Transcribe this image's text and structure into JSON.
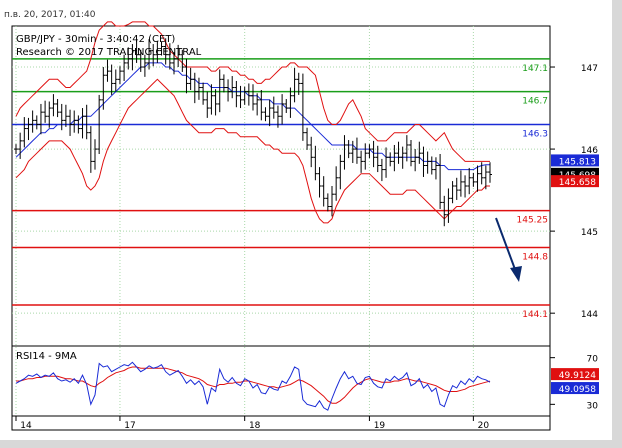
{
  "header": {
    "date_text": "п.в. 20, 2017, 01:40"
  },
  "chart_data": {
    "type": "candlestick",
    "title": "GBP/JPY - 30min - 3:40:42 (CET)",
    "subtitle": "Research © 2017 TRADING CENTRAL",
    "ylim": [
      143.6,
      147.5
    ],
    "y_ticks": [
      "147",
      "146",
      "145",
      "144"
    ],
    "x_ticks": [
      "14",
      "17",
      "18",
      "19",
      "20"
    ],
    "horizontal_levels": [
      {
        "value": 147.1,
        "label": "147.1",
        "color": "#1a9e1a",
        "kind": "resistance"
      },
      {
        "value": 146.7,
        "label": "146.7",
        "color": "#1a9e1a",
        "kind": "resistance"
      },
      {
        "value": 146.3,
        "label": "146.3",
        "color": "#1a2bd6",
        "kind": "pivot"
      },
      {
        "value": 145.25,
        "label": "145.25",
        "color": "#e01010",
        "kind": "support"
      },
      {
        "value": 144.8,
        "label": "144.8",
        "color": "#e01010",
        "kind": "support"
      },
      {
        "value": 144.1,
        "label": "144.1",
        "color": "#e01010",
        "kind": "support"
      }
    ],
    "price_badges": [
      {
        "label": "145.813",
        "bg": "#1a2bd6",
        "fg": "#ffffff"
      },
      {
        "label": "145.698",
        "bg": "#000000",
        "fg": "#ffffff"
      },
      {
        "label": "145.658",
        "bg": "#e01010",
        "fg": "#ffffff"
      }
    ],
    "price_series": [
      146.0,
      146.1,
      146.25,
      146.3,
      146.35,
      146.3,
      146.45,
      146.4,
      146.5,
      146.55,
      146.45,
      146.35,
      146.4,
      146.3,
      146.35,
      146.25,
      146.4,
      146.2,
      145.85,
      146.0,
      146.6,
      146.9,
      146.95,
      146.8,
      146.85,
      146.95,
      147.05,
      147.1,
      147.2,
      147.15,
      147.0,
      147.05,
      147.2,
      147.15,
      147.2,
      147.25,
      147.15,
      147.05,
      147.1,
      147.15,
      147.0,
      146.8,
      146.85,
      146.7,
      146.75,
      146.6,
      146.5,
      146.65,
      146.55,
      146.85,
      146.75,
      146.7,
      146.75,
      146.65,
      146.6,
      146.7,
      146.65,
      146.55,
      146.6,
      146.45,
      146.4,
      146.5,
      146.45,
      146.4,
      146.55,
      146.5,
      146.65,
      146.85,
      146.8,
      146.2,
      146.05,
      145.9,
      145.7,
      145.55,
      145.4,
      145.3,
      145.45,
      145.65,
      145.85,
      146.05,
      145.95,
      146.0,
      145.9,
      145.85,
      145.95,
      146.0,
      145.9,
      145.8,
      145.75,
      145.9,
      145.85,
      145.95,
      145.9,
      145.95,
      146.05,
      145.85,
      145.9,
      145.95,
      145.8,
      145.85,
      145.75,
      145.8,
      145.35,
      145.2,
      145.4,
      145.55,
      145.5,
      145.6,
      145.55,
      145.65,
      145.6,
      145.7,
      145.65,
      145.72,
      145.69
    ],
    "upper_band": [
      146.4,
      146.5,
      146.55,
      146.6,
      146.65,
      146.7,
      146.75,
      146.8,
      146.85,
      146.85,
      146.85,
      146.8,
      146.75,
      146.75,
      146.8,
      146.85,
      146.9,
      146.95,
      147.1,
      147.3,
      147.45,
      147.5,
      147.55,
      147.55,
      147.5,
      147.5,
      147.5,
      147.52,
      147.55,
      147.55,
      147.55,
      147.55,
      147.5,
      147.5,
      147.45,
      147.4,
      147.3,
      147.2,
      147.15,
      147.1,
      147.05,
      147.0,
      147.0,
      147.0,
      147.0,
      147.0,
      147.0,
      146.95,
      146.95,
      147.0,
      147.0,
      147.0,
      146.95,
      146.95,
      146.9,
      146.9,
      146.85,
      146.85,
      146.8,
      146.8,
      146.85,
      146.85,
      146.9,
      146.95,
      147.0,
      147.0,
      147.05,
      147.05,
      147.0,
      147.0,
      147.0,
      146.95,
      146.9,
      146.7,
      146.5,
      146.35,
      146.3,
      146.3,
      146.35,
      146.45,
      146.55,
      146.6,
      146.5,
      146.4,
      146.25,
      146.2,
      146.15,
      146.1,
      146.1,
      146.1,
      146.15,
      146.2,
      146.2,
      146.2,
      146.2,
      146.25,
      146.3,
      146.3,
      146.25,
      146.2,
      146.15,
      146.1,
      146.15,
      146.2,
      146.1,
      146.0,
      145.95,
      145.9,
      145.85,
      145.85,
      145.85,
      145.85,
      145.85,
      145.85,
      145.85
    ],
    "lower_band": [
      145.65,
      145.7,
      145.75,
      145.85,
      145.9,
      145.95,
      146.0,
      146.05,
      146.1,
      146.1,
      146.1,
      146.1,
      146.05,
      146.0,
      145.9,
      145.8,
      145.7,
      145.55,
      145.5,
      145.55,
      145.65,
      145.85,
      146.0,
      146.1,
      146.2,
      146.3,
      146.4,
      146.5,
      146.55,
      146.6,
      146.65,
      146.7,
      146.75,
      146.8,
      146.85,
      146.8,
      146.75,
      146.7,
      146.65,
      146.55,
      146.45,
      146.35,
      146.3,
      146.25,
      146.2,
      146.2,
      146.2,
      146.2,
      146.25,
      146.25,
      146.25,
      146.2,
      146.2,
      146.2,
      146.15,
      146.15,
      146.15,
      146.15,
      146.15,
      146.1,
      146.05,
      146.05,
      146.0,
      146.0,
      145.95,
      145.95,
      145.95,
      145.95,
      145.9,
      145.8,
      145.6,
      145.4,
      145.25,
      145.15,
      145.1,
      145.1,
      145.15,
      145.3,
      145.4,
      145.5,
      145.55,
      145.6,
      145.65,
      145.7,
      145.7,
      145.7,
      145.65,
      145.6,
      145.55,
      145.5,
      145.45,
      145.45,
      145.45,
      145.45,
      145.5,
      145.5,
      145.5,
      145.45,
      145.4,
      145.35,
      145.3,
      145.25,
      145.2,
      145.15,
      145.2,
      145.25,
      145.3,
      145.3,
      145.35,
      145.4,
      145.45,
      145.5,
      145.5,
      145.55,
      145.55
    ],
    "ma_series": [
      145.9,
      145.95,
      146.0,
      146.05,
      146.1,
      146.15,
      146.2,
      146.2,
      146.25,
      146.25,
      146.3,
      146.3,
      146.3,
      146.3,
      146.35,
      146.35,
      146.4,
      146.4,
      146.4,
      146.45,
      146.5,
      146.55,
      146.6,
      146.65,
      146.7,
      146.75,
      146.8,
      146.85,
      146.9,
      146.95,
      147.0,
      147.0,
      147.05,
      147.05,
      147.05,
      147.05,
      147.0,
      147.0,
      146.95,
      146.95,
      146.9,
      146.9,
      146.85,
      146.85,
      146.8,
      146.8,
      146.8,
      146.75,
      146.75,
      146.75,
      146.75,
      146.75,
      146.7,
      146.7,
      146.7,
      146.7,
      146.65,
      146.65,
      146.65,
      146.6,
      146.6,
      146.6,
      146.55,
      146.55,
      146.55,
      146.5,
      146.5,
      146.5,
      146.45,
      146.4,
      146.35,
      146.3,
      146.25,
      146.2,
      146.15,
      146.1,
      146.05,
      146.05,
      146.05,
      146.05,
      146.05,
      146.05,
      146.0,
      146.0,
      146.0,
      146.0,
      145.95,
      145.95,
      145.95,
      145.9,
      145.9,
      145.9,
      145.9,
      145.9,
      145.9,
      145.9,
      145.9,
      145.9,
      145.85,
      145.85,
      145.85,
      145.85,
      145.8,
      145.8,
      145.75,
      145.75,
      145.75,
      145.75,
      145.75,
      145.75,
      145.75,
      145.78,
      145.8,
      145.81,
      145.81
    ],
    "rsi": {
      "label": "RSI14 - 9MA",
      "ylim": [
        20,
        80
      ],
      "y_ticks": [
        "70",
        "30"
      ],
      "badges": [
        {
          "label": "49.9124",
          "bg": "#e01010",
          "fg": "#ffffff"
        },
        {
          "label": "49.0958",
          "bg": "#1a2bd6",
          "fg": "#ffffff"
        }
      ],
      "values": [
        48,
        50,
        52,
        55,
        54,
        56,
        53,
        55,
        54,
        57,
        52,
        50,
        51,
        49,
        52,
        48,
        55,
        47,
        30,
        38,
        65,
        62,
        63,
        58,
        60,
        62,
        64,
        63,
        66,
        62,
        58,
        60,
        63,
        61,
        62,
        64,
        58,
        55,
        57,
        59,
        54,
        48,
        51,
        47,
        50,
        45,
        30,
        44,
        41,
        60,
        52,
        49,
        53,
        48,
        46,
        52,
        50,
        44,
        47,
        40,
        39,
        45,
        43,
        42,
        50,
        48,
        54,
        62,
        60,
        34,
        30,
        29,
        28,
        33,
        27,
        25,
        35,
        44,
        52,
        58,
        52,
        54,
        48,
        47,
        53,
        54,
        48,
        45,
        44,
        52,
        50,
        54,
        51,
        53,
        57,
        46,
        48,
        52,
        44,
        47,
        41,
        44,
        30,
        28,
        38,
        46,
        44,
        50,
        47,
        52,
        49,
        54,
        52,
        51,
        49
      ],
      "ma": [
        50,
        50,
        51,
        52,
        52,
        53,
        53,
        54,
        54,
        54,
        54,
        53,
        52,
        52,
        51,
        50,
        50,
        48,
        46,
        45,
        48,
        50,
        53,
        55,
        57,
        58,
        59,
        61,
        62,
        62,
        61,
        61,
        61,
        61,
        61,
        61,
        61,
        60,
        59,
        58,
        57,
        55,
        54,
        53,
        52,
        50,
        47,
        46,
        45,
        47,
        47,
        48,
        48,
        49,
        49,
        50,
        50,
        49,
        48,
        47,
        46,
        45,
        45,
        44,
        45,
        46,
        47,
        49,
        51,
        50,
        48,
        46,
        43,
        40,
        37,
        33,
        31,
        31,
        33,
        36,
        40,
        44,
        47,
        49,
        51,
        52,
        51,
        50,
        49,
        49,
        49,
        50,
        50,
        51,
        52,
        51,
        50,
        50,
        49,
        48,
        47,
        46,
        44,
        42,
        41,
        41,
        41,
        42,
        43,
        45,
        46,
        47,
        48,
        49,
        49.9
      ]
    }
  }
}
